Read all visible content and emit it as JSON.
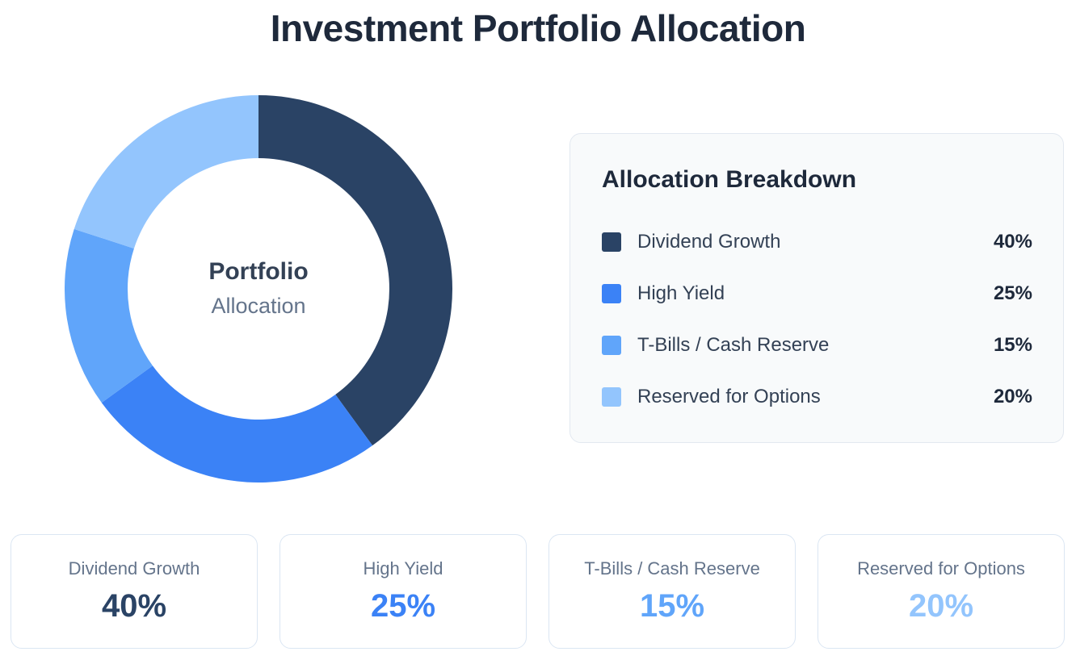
{
  "page": {
    "title": "Investment Portfolio Allocation"
  },
  "center": {
    "main": "Portfolio",
    "sub": "Allocation"
  },
  "breakdown": {
    "title": "Allocation Breakdown",
    "items": [
      {
        "label": "Dividend Growth",
        "value": "40%",
        "color": "#2a4365"
      },
      {
        "label": "High Yield",
        "value": "25%",
        "color": "#3b82f6"
      },
      {
        "label": "T-Bills / Cash Reserve",
        "value": "15%",
        "color": "#60a5fa"
      },
      {
        "label": "Reserved for Options",
        "value": "20%",
        "color": "#93c5fd"
      }
    ]
  },
  "cards": [
    {
      "label": "Dividend Growth",
      "value": "40%",
      "color": "#2a4365"
    },
    {
      "label": "High Yield",
      "value": "25%",
      "color": "#3b82f6"
    },
    {
      "label": "T-Bills / Cash Reserve",
      "value": "15%",
      "color": "#60a5fa"
    },
    {
      "label": "Reserved for Options",
      "value": "20%",
      "color": "#93c5fd"
    }
  ],
  "chart_data": {
    "type": "pie",
    "variant": "donut",
    "title": "Investment Portfolio Allocation",
    "categories": [
      "Dividend Growth",
      "High Yield",
      "T-Bills / Cash Reserve",
      "Reserved for Options"
    ],
    "values": [
      40,
      25,
      15,
      20
    ],
    "unit": "%",
    "colors": [
      "#2a4365",
      "#3b82f6",
      "#60a5fa",
      "#93c5fd"
    ],
    "center_label": [
      "Portfolio",
      "Allocation"
    ],
    "start_angle": "top",
    "direction": "clockwise",
    "legend": "right"
  }
}
